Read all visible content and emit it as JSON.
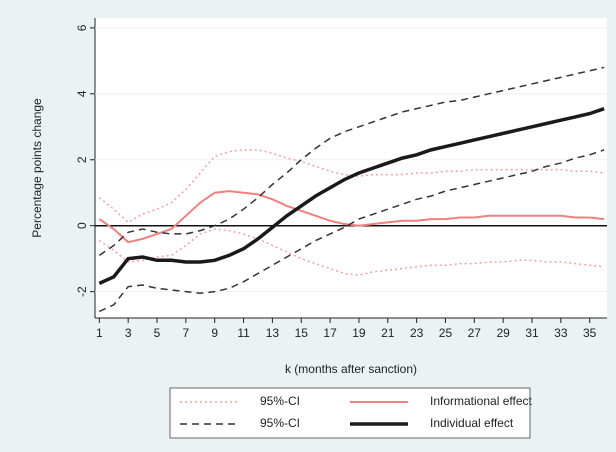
{
  "chart_data": {
    "type": "line",
    "ylabel": "Percentage points change",
    "xlabel": "k (months after sanction)",
    "x": [
      1,
      2,
      3,
      4,
      5,
      6,
      7,
      8,
      9,
      10,
      11,
      12,
      13,
      14,
      15,
      16,
      17,
      18,
      19,
      20,
      21,
      22,
      23,
      24,
      25,
      26,
      27,
      28,
      29,
      30,
      31,
      32,
      33,
      34,
      35,
      36
    ],
    "xlim": [
      0.7,
      36.2
    ],
    "ylim": [
      -2.8,
      6.3
    ],
    "xticks": [
      1,
      3,
      5,
      7,
      9,
      11,
      13,
      15,
      17,
      19,
      21,
      23,
      25,
      27,
      29,
      31,
      33,
      35
    ],
    "yticks": [
      -2,
      0,
      2,
      4,
      6
    ],
    "grid": true,
    "zero_line": true,
    "series": [
      {
        "name": "95%-CI",
        "color": "#f4a0a0",
        "dash": "dotted",
        "width": 1.5,
        "low": [
          -0.45,
          -0.75,
          -1.1,
          -1.05,
          -0.95,
          -0.9,
          -0.6,
          -0.25,
          -0.1,
          -0.15,
          -0.25,
          -0.4,
          -0.6,
          -0.8,
          -1.0,
          -1.15,
          -1.3,
          -1.45,
          -1.5,
          -1.4,
          -1.35,
          -1.3,
          -1.25,
          -1.2,
          -1.2,
          -1.15,
          -1.15,
          -1.1,
          -1.1,
          -1.05,
          -1.05,
          -1.1,
          -1.1,
          -1.15,
          -1.2,
          -1.25
        ],
        "high": [
          0.85,
          0.5,
          0.1,
          0.35,
          0.5,
          0.7,
          1.1,
          1.6,
          2.1,
          2.25,
          2.3,
          2.3,
          2.2,
          2.05,
          1.95,
          1.8,
          1.65,
          1.55,
          1.5,
          1.55,
          1.55,
          1.55,
          1.6,
          1.6,
          1.65,
          1.65,
          1.7,
          1.7,
          1.7,
          1.7,
          1.7,
          1.7,
          1.7,
          1.65,
          1.65,
          1.6
        ]
      },
      {
        "name": "Informational effect",
        "color": "#f08080",
        "width": 2,
        "values": [
          0.2,
          -0.1,
          -0.5,
          -0.4,
          -0.25,
          -0.1,
          0.3,
          0.7,
          1.0,
          1.05,
          1.0,
          0.95,
          0.8,
          0.6,
          0.45,
          0.3,
          0.15,
          0.05,
          0.0,
          0.05,
          0.1,
          0.15,
          0.15,
          0.2,
          0.2,
          0.25,
          0.25,
          0.3,
          0.3,
          0.3,
          0.3,
          0.3,
          0.3,
          0.25,
          0.25,
          0.2
        ]
      },
      {
        "name": "95%-CI",
        "color": "#333333",
        "dash": "dashed",
        "width": 1.5,
        "low": [
          -2.6,
          -2.4,
          -1.85,
          -1.8,
          -1.9,
          -1.95,
          -2.0,
          -2.05,
          -2.0,
          -1.9,
          -1.7,
          -1.45,
          -1.2,
          -0.95,
          -0.7,
          -0.45,
          -0.25,
          -0.05,
          0.2,
          0.35,
          0.5,
          0.65,
          0.8,
          0.9,
          1.05,
          1.15,
          1.25,
          1.35,
          1.45,
          1.55,
          1.65,
          1.8,
          1.9,
          2.05,
          2.15,
          2.3
        ],
        "high": [
          -0.9,
          -0.6,
          -0.2,
          -0.1,
          -0.2,
          -0.25,
          -0.25,
          -0.15,
          0.0,
          0.2,
          0.5,
          0.85,
          1.25,
          1.6,
          2.0,
          2.35,
          2.65,
          2.85,
          3.0,
          3.15,
          3.3,
          3.45,
          3.55,
          3.65,
          3.75,
          3.8,
          3.9,
          4.0,
          4.1,
          4.2,
          4.3,
          4.4,
          4.5,
          4.6,
          4.7,
          4.8
        ]
      },
      {
        "name": "Individual effect",
        "color": "#1a1a1a",
        "width": 3.5,
        "values": [
          -1.75,
          -1.55,
          -1.0,
          -0.95,
          -1.05,
          -1.05,
          -1.1,
          -1.1,
          -1.05,
          -0.9,
          -0.7,
          -0.4,
          -0.05,
          0.3,
          0.6,
          0.9,
          1.15,
          1.4,
          1.6,
          1.75,
          1.9,
          2.05,
          2.15,
          2.3,
          2.4,
          2.5,
          2.6,
          2.7,
          2.8,
          2.9,
          3.0,
          3.1,
          3.2,
          3.3,
          3.4,
          3.55
        ]
      }
    ]
  }
}
